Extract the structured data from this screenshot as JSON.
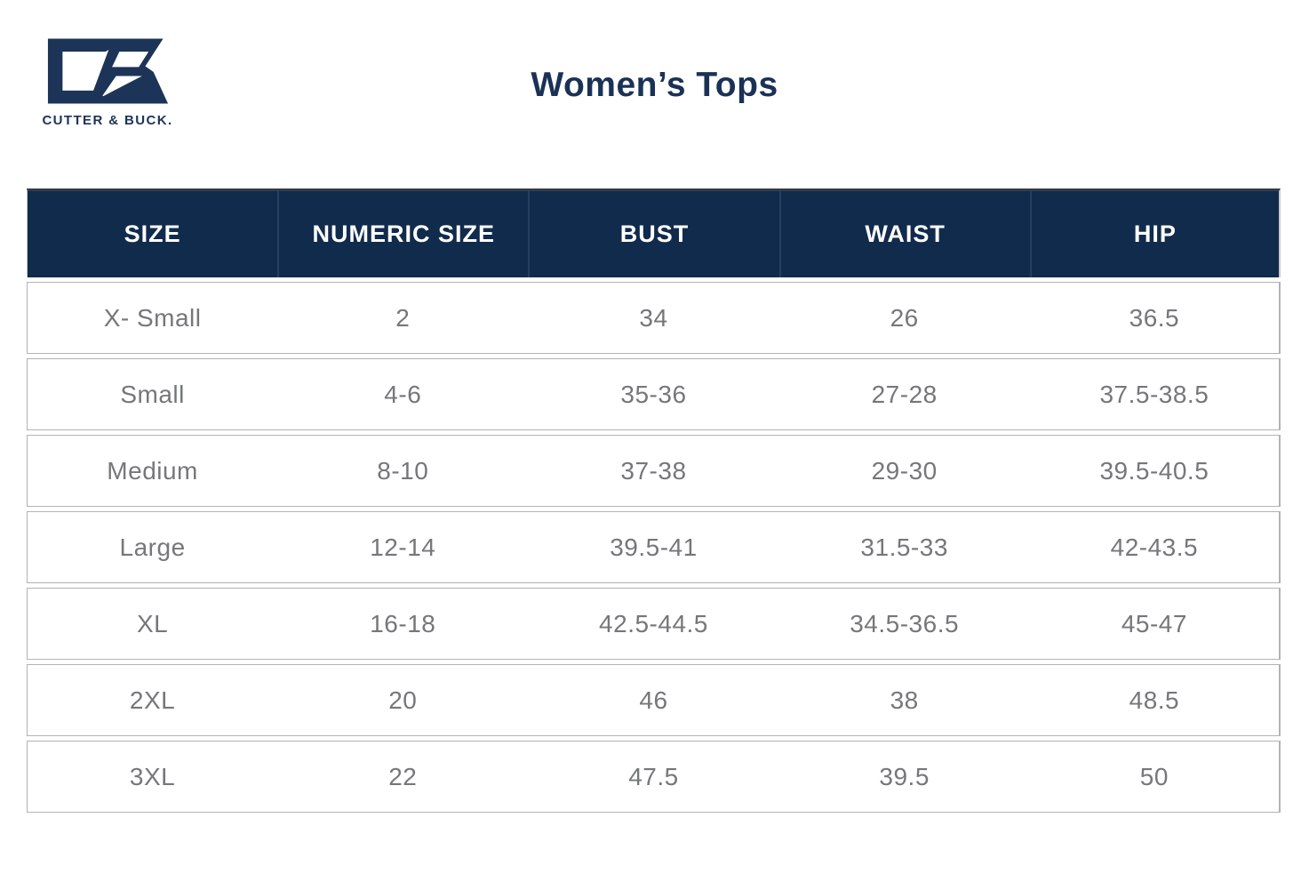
{
  "brand": {
    "name": "CUTTER & BUCK.",
    "logo_icon": "cutter-buck-cb-monogram",
    "navy": "#1c3457"
  },
  "page_title": "Women’s Tops",
  "table": {
    "columns": [
      "SIZE",
      "NUMERIC SIZE",
      "BUST",
      "WAIST",
      "HIP"
    ],
    "rows": [
      [
        "X- Small",
        "2",
        "34",
        "26",
        "36.5"
      ],
      [
        "Small",
        "4-6",
        "35-36",
        "27-28",
        "37.5-38.5"
      ],
      [
        "Medium",
        "8-10",
        "37-38",
        "29-30",
        "39.5-40.5"
      ],
      [
        "Large",
        "12-14",
        "39.5-41",
        "31.5-33",
        "42-43.5"
      ],
      [
        "XL",
        "16-18",
        "42.5-44.5",
        "34.5-36.5",
        "45-47"
      ],
      [
        "2XL",
        "20",
        "46",
        "38",
        "48.5"
      ],
      [
        "3XL",
        "22",
        "47.5",
        "39.5",
        "50"
      ]
    ],
    "colors": {
      "header_bg": "#112b4c",
      "header_text": "#ffffff",
      "cell_text": "#75777a",
      "row_border": "#b3b3b3"
    }
  }
}
